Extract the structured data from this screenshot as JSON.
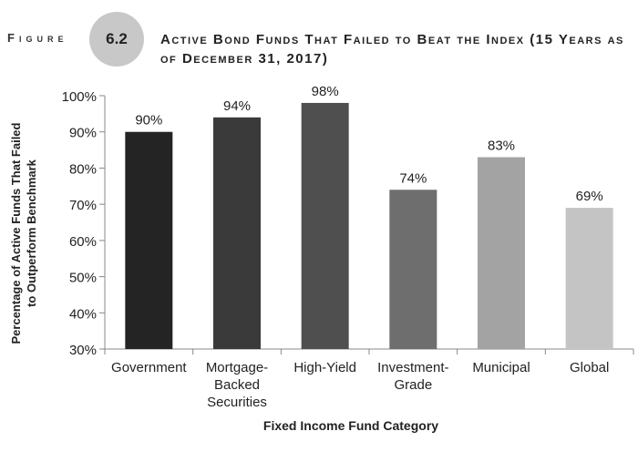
{
  "figure": {
    "word": "Figure",
    "number": "6.2",
    "title": "Active Bond Funds That Failed to Beat the Index (15 Years as of December 31, 2017)"
  },
  "chart_data": {
    "type": "bar",
    "categories": [
      [
        "Government"
      ],
      [
        "Mortgage-",
        "Backed",
        "Securities"
      ],
      [
        "High-Yield"
      ],
      [
        "Investment-",
        "Grade"
      ],
      [
        "Municipal"
      ],
      [
        "Global"
      ]
    ],
    "values": [
      90,
      94,
      98,
      74,
      83,
      69
    ],
    "data_labels": [
      "90%",
      "94%",
      "98%",
      "74%",
      "83%",
      "69%"
    ],
    "bar_colors": [
      "#242424",
      "#3a3a3a",
      "#4f4f4f",
      "#6e6e6e",
      "#a3a3a3",
      "#c4c4c4"
    ],
    "ylim": [
      30,
      100
    ],
    "yticks": [
      30,
      40,
      50,
      60,
      70,
      80,
      90,
      100
    ],
    "ytick_labels": [
      "30%",
      "40%",
      "50%",
      "60%",
      "70%",
      "80%",
      "90%",
      "100%"
    ],
    "ylabel": [
      "Percentage of Active Funds That Failed",
      "to Outperform Benchmark"
    ],
    "xlabel": "Fixed Income Fund Category",
    "grid": false,
    "legend": "none"
  }
}
